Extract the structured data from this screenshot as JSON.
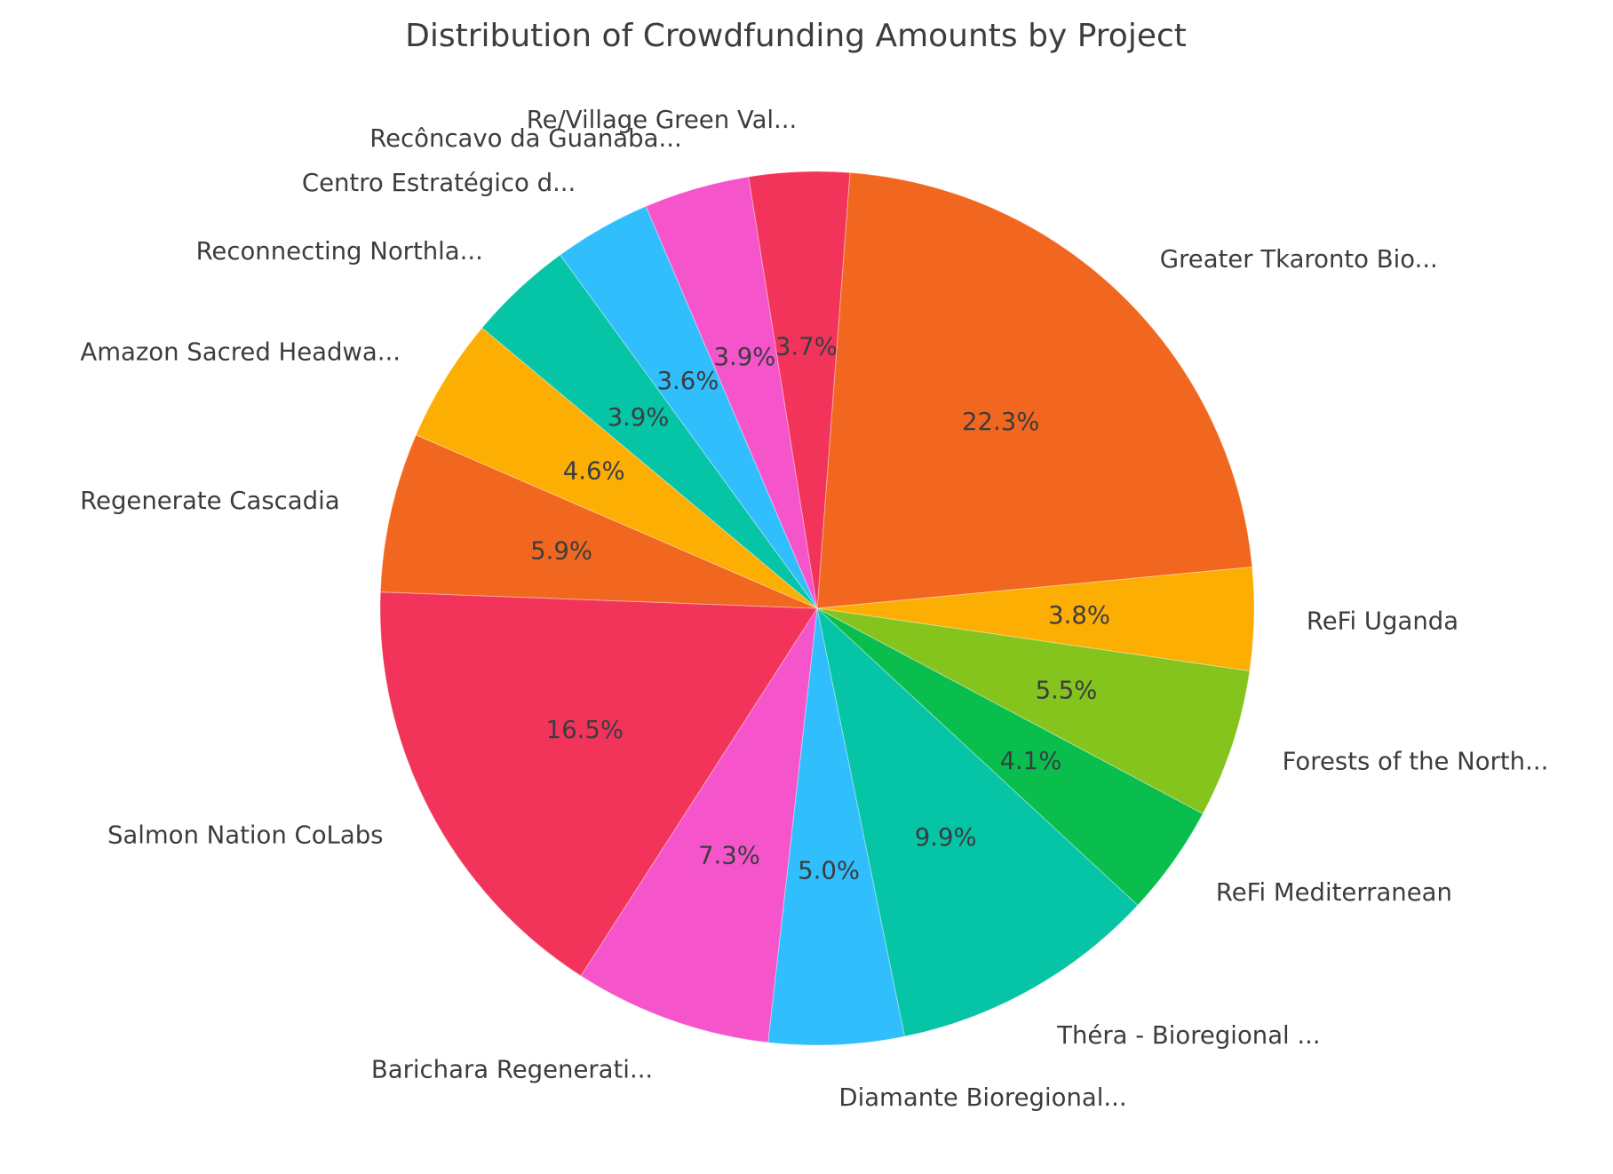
{
  "chart_data": {
    "type": "pie",
    "title": "Distribution of Crowdfunding Amounts by Project",
    "unit": "%",
    "slices": [
      {
        "label": "Greater Tkaronto Bio...",
        "value": 22.3,
        "percent_label": "22.3%",
        "color": "#F2671F"
      },
      {
        "label": "ReFi Uganda",
        "value": 3.8,
        "percent_label": "3.8%",
        "color": "#FCAE03"
      },
      {
        "label": "Forests of the North...",
        "value": 5.5,
        "percent_label": "5.5%",
        "color": "#85C31D"
      },
      {
        "label": "ReFi Mediterranean",
        "value": 4.1,
        "percent_label": "4.1%",
        "color": "#0ABE4E"
      },
      {
        "label": "Théra - Bioregional ...",
        "value": 9.9,
        "percent_label": "9.9%",
        "color": "#06C4A6"
      },
      {
        "label": "Diamante Bioregional...",
        "value": 5.0,
        "percent_label": "5.0%",
        "color": "#30BFFC"
      },
      {
        "label": "Barichara Regenerati...",
        "value": 7.3,
        "percent_label": "7.3%",
        "color": "#F554CB"
      },
      {
        "label": "Salmon Nation CoLabs",
        "value": 16.5,
        "percent_label": "16.5%",
        "color": "#F2345B"
      },
      {
        "label": "Regenerate Cascadia",
        "value": 5.9,
        "percent_label": "5.9%",
        "color": "#F2671F"
      },
      {
        "label": "Amazon Sacred Headwa...",
        "value": 4.6,
        "percent_label": "4.6%",
        "color": "#FCAE03"
      },
      {
        "label": "Reconnecting Northla...",
        "value": 3.9,
        "percent_label": "3.9%",
        "color": "#06C4A6"
      },
      {
        "label": "Centro Estratégico d...",
        "value": 3.6,
        "percent_label": "3.6%",
        "color": "#30BFFC"
      },
      {
        "label": "Recôncavo da Guanaba...",
        "value": 3.9,
        "percent_label": "3.9%",
        "color": "#F554CB"
      },
      {
        "label": "Re/Village Green Val...",
        "value": 3.7,
        "percent_label": "3.7%",
        "color": "#F2345B"
      }
    ],
    "layout": {
      "legend": "none",
      "grid": "off",
      "start_angle_deg": 85.7,
      "clockwise": true,
      "label_distance": 1.12,
      "pct_distance": 0.6,
      "text_color": "#3A3D40",
      "background": "#FFFFFF"
    }
  }
}
